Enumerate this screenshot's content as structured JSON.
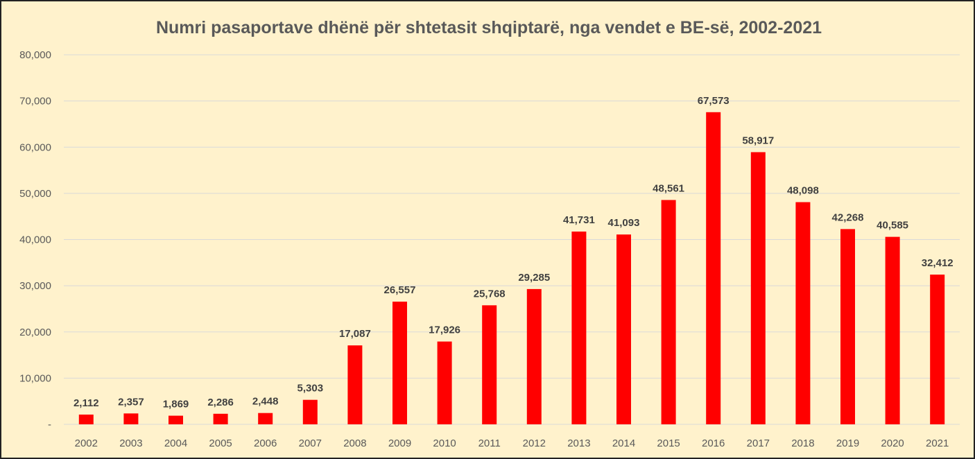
{
  "chart_data": {
    "type": "bar",
    "title": "Numri pasaportave dhënë për shtetasit shqiptarë, nga vendet e BE-së, 2002-2021",
    "categories": [
      "2002",
      "2003",
      "2004",
      "2005",
      "2006",
      "2007",
      "2008",
      "2009",
      "2010",
      "2011",
      "2012",
      "2013",
      "2014",
      "2015",
      "2016",
      "2017",
      "2018",
      "2019",
      "2020",
      "2021"
    ],
    "values": [
      2112,
      2357,
      1869,
      2286,
      2448,
      5303,
      17087,
      26557,
      17926,
      25768,
      29285,
      41731,
      41093,
      48561,
      67573,
      58917,
      48098,
      42268,
      40585,
      32412
    ],
    "value_labels": [
      "2,112",
      "2,357",
      "1,869",
      "2,286",
      "2,448",
      "5,303",
      "17,087",
      "26,557",
      "17,926",
      "25,768",
      "29,285",
      "41,731",
      "41,093",
      "48,561",
      "67,573",
      "58,917",
      "48,098",
      "42,268",
      "40,585",
      "32,412"
    ],
    "yticks": [
      0,
      10000,
      20000,
      30000,
      40000,
      50000,
      60000,
      70000,
      80000
    ],
    "ytick_labels": [
      "-",
      "10,000",
      "20,000",
      "30,000",
      "40,000",
      "50,000",
      "60,000",
      "70,000",
      "80,000"
    ],
    "ylim": [
      0,
      80000
    ],
    "xlabel": "",
    "ylabel": "",
    "grid": true,
    "legend": "none",
    "colors": {
      "bar": "#ff0000",
      "background": "#fff2cc",
      "grid": "#d9d9d9",
      "text": "#595959",
      "label": "#404040"
    }
  }
}
